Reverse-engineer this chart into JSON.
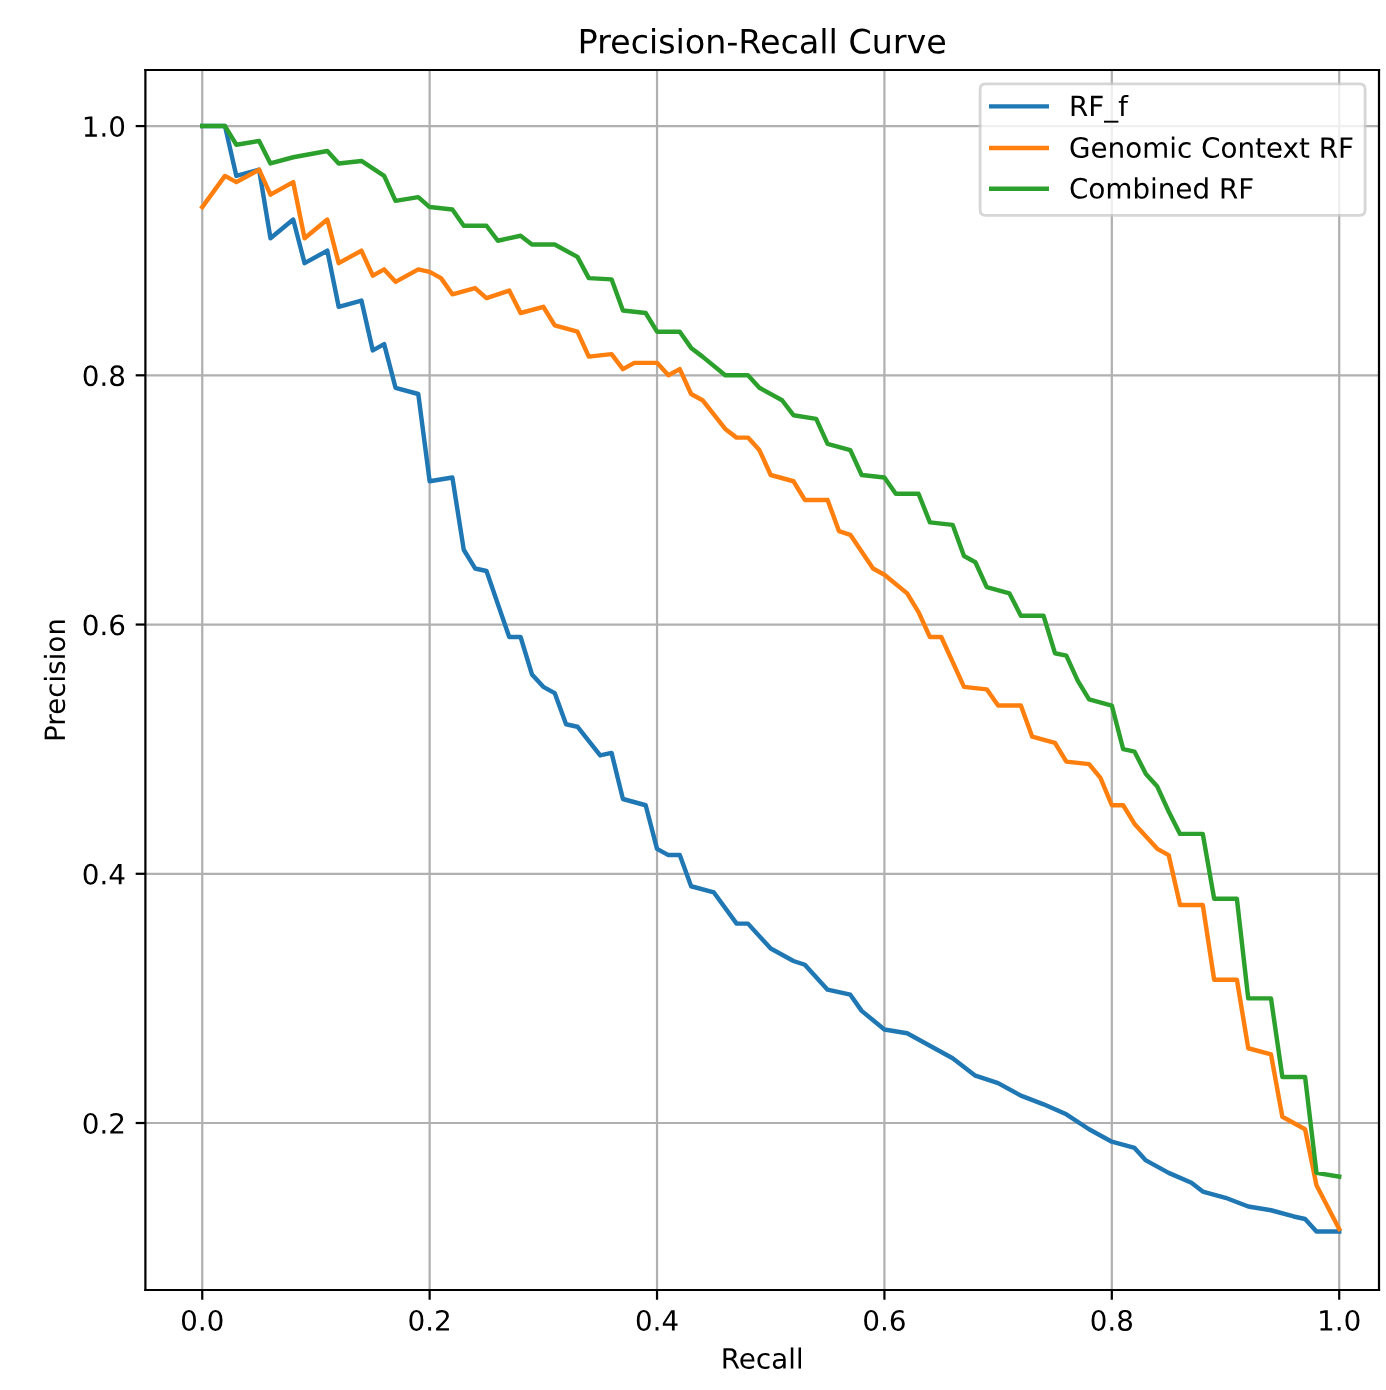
{
  "chart_data": {
    "type": "line",
    "title": "Precision-Recall Curve",
    "xlabel": "Recall",
    "ylabel": "Precision",
    "xlim": [
      -0.05,
      1.035
    ],
    "ylim": [
      0.066,
      1.045
    ],
    "xticks": [
      {
        "value": 0,
        "label": "0.0"
      },
      0.2,
      0.4,
      0.6,
      0.8,
      {
        "value": 1,
        "label": "1.0"
      }
    ],
    "yticks": [
      0.2,
      0.4,
      0.6,
      0.8,
      {
        "value": 1,
        "label": "1.0"
      }
    ],
    "grid": true,
    "legend": "top right",
    "marker": "none",
    "line_style": "solid",
    "series": [
      {
        "name": "RF_f",
        "color": "#1f77b4",
        "x": [
          0,
          0.02,
          0.03,
          0.05,
          0.06,
          0.08,
          0.09,
          0.11,
          0.12,
          0.14,
          0.15,
          0.16,
          0.17,
          0.19,
          0.2,
          0.22,
          0.23,
          0.24,
          0.25,
          0.27,
          0.28,
          0.29,
          0.3,
          0.31,
          0.32,
          0.33,
          0.35,
          0.36,
          0.37,
          0.39,
          0.4,
          0.41,
          0.42,
          0.43,
          0.45,
          0.47,
          0.48,
          0.5,
          0.52,
          0.53,
          0.55,
          0.57,
          0.58,
          0.6,
          0.62,
          0.64,
          0.66,
          0.68,
          0.7,
          0.72,
          0.74,
          0.76,
          0.78,
          0.8,
          0.82,
          0.83,
          0.85,
          0.87,
          0.88,
          0.9,
          0.92,
          0.94,
          0.96,
          0.97,
          0.98,
          1.0
        ],
        "values": [
          1.0,
          1.0,
          0.96,
          0.965,
          0.91,
          0.925,
          0.89,
          0.9,
          0.855,
          0.86,
          0.82,
          0.825,
          0.79,
          0.785,
          0.715,
          0.718,
          0.66,
          0.645,
          0.643,
          0.59,
          0.59,
          0.56,
          0.55,
          0.545,
          0.52,
          0.518,
          0.495,
          0.497,
          0.46,
          0.455,
          0.42,
          0.415,
          0.415,
          0.39,
          0.385,
          0.36,
          0.36,
          0.34,
          0.33,
          0.327,
          0.307,
          0.303,
          0.29,
          0.275,
          0.272,
          0.262,
          0.252,
          0.238,
          0.232,
          0.222,
          0.215,
          0.207,
          0.195,
          0.185,
          0.18,
          0.17,
          0.16,
          0.152,
          0.145,
          0.14,
          0.133,
          0.13,
          0.125,
          0.123,
          0.113,
          0.113
        ]
      },
      {
        "name": "Genomic Context RF",
        "color": "#ff7f0e",
        "x": [
          0,
          0.02,
          0.03,
          0.05,
          0.06,
          0.08,
          0.09,
          0.11,
          0.12,
          0.14,
          0.15,
          0.16,
          0.17,
          0.19,
          0.2,
          0.21,
          0.22,
          0.24,
          0.25,
          0.27,
          0.28,
          0.3,
          0.31,
          0.33,
          0.34,
          0.36,
          0.37,
          0.38,
          0.4,
          0.41,
          0.42,
          0.43,
          0.44,
          0.46,
          0.47,
          0.48,
          0.49,
          0.5,
          0.52,
          0.53,
          0.55,
          0.56,
          0.57,
          0.59,
          0.6,
          0.62,
          0.63,
          0.64,
          0.65,
          0.67,
          0.69,
          0.7,
          0.72,
          0.73,
          0.75,
          0.76,
          0.78,
          0.79,
          0.8,
          0.81,
          0.82,
          0.84,
          0.85,
          0.86,
          0.88,
          0.89,
          0.91,
          0.92,
          0.94,
          0.95,
          0.97,
          0.98,
          1.0
        ],
        "values": [
          0.935,
          0.96,
          0.955,
          0.965,
          0.945,
          0.955,
          0.91,
          0.925,
          0.89,
          0.9,
          0.88,
          0.885,
          0.875,
          0.885,
          0.883,
          0.878,
          0.865,
          0.87,
          0.862,
          0.868,
          0.85,
          0.855,
          0.84,
          0.835,
          0.815,
          0.817,
          0.805,
          0.81,
          0.81,
          0.8,
          0.805,
          0.785,
          0.78,
          0.757,
          0.75,
          0.75,
          0.74,
          0.72,
          0.715,
          0.7,
          0.7,
          0.675,
          0.672,
          0.645,
          0.64,
          0.625,
          0.61,
          0.59,
          0.59,
          0.55,
          0.548,
          0.535,
          0.535,
          0.51,
          0.505,
          0.49,
          0.488,
          0.477,
          0.455,
          0.455,
          0.44,
          0.42,
          0.415,
          0.375,
          0.375,
          0.315,
          0.315,
          0.26,
          0.255,
          0.205,
          0.195,
          0.15,
          0.115
        ]
      },
      {
        "name": "Combined RF",
        "color": "#2ca02c",
        "x": [
          0,
          0.02,
          0.03,
          0.05,
          0.06,
          0.08,
          0.11,
          0.12,
          0.14,
          0.16,
          0.17,
          0.19,
          0.2,
          0.22,
          0.23,
          0.25,
          0.26,
          0.28,
          0.29,
          0.31,
          0.33,
          0.34,
          0.36,
          0.37,
          0.39,
          0.4,
          0.42,
          0.43,
          0.44,
          0.46,
          0.48,
          0.49,
          0.51,
          0.52,
          0.54,
          0.55,
          0.57,
          0.58,
          0.6,
          0.61,
          0.63,
          0.64,
          0.66,
          0.67,
          0.68,
          0.69,
          0.71,
          0.72,
          0.74,
          0.75,
          0.76,
          0.77,
          0.78,
          0.8,
          0.81,
          0.82,
          0.83,
          0.84,
          0.85,
          0.86,
          0.88,
          0.89,
          0.91,
          0.92,
          0.94,
          0.95,
          0.97,
          0.98,
          1.0
        ],
        "values": [
          1.0,
          1.0,
          0.985,
          0.988,
          0.97,
          0.975,
          0.98,
          0.97,
          0.972,
          0.96,
          0.94,
          0.943,
          0.935,
          0.933,
          0.92,
          0.92,
          0.908,
          0.912,
          0.905,
          0.905,
          0.895,
          0.878,
          0.877,
          0.852,
          0.85,
          0.835,
          0.835,
          0.822,
          0.815,
          0.8,
          0.8,
          0.79,
          0.78,
          0.768,
          0.765,
          0.745,
          0.74,
          0.72,
          0.718,
          0.705,
          0.705,
          0.682,
          0.68,
          0.655,
          0.65,
          0.63,
          0.625,
          0.607,
          0.607,
          0.577,
          0.575,
          0.555,
          0.54,
          0.535,
          0.5,
          0.498,
          0.48,
          0.47,
          0.45,
          0.432,
          0.432,
          0.38,
          0.38,
          0.3,
          0.3,
          0.237,
          0.237,
          0.16,
          0.157
        ]
      }
    ]
  }
}
